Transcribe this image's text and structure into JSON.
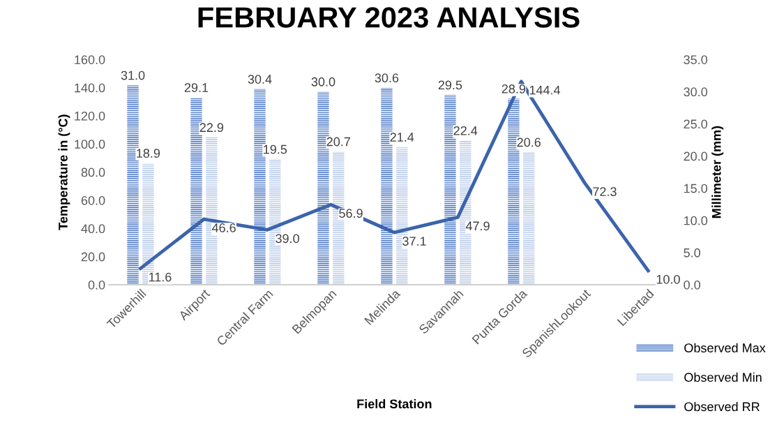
{
  "chart_data": {
    "type": "bar",
    "title": "FEBRUARY 2023 ANALYSIS",
    "xlabel": "Field Station",
    "ylabel": "Temperature in (°C)",
    "y2label": "Millimeter (mm)",
    "categories": [
      "Towerhill",
      "Airport",
      "Central Farm",
      "Belmopan",
      "Melinda",
      "Savannah",
      "Punta Gorda",
      "SpanishLookout",
      "Libertad"
    ],
    "series": [
      {
        "name": "Observed Max",
        "type": "bar",
        "axis": "y2",
        "color": "#4472c4",
        "values": [
          31.0,
          29.1,
          30.4,
          30.0,
          30.6,
          29.5,
          28.9,
          null,
          null
        ],
        "value_labels": [
          "31.0",
          "29.1",
          "30.4",
          "30.0",
          "30.6",
          "29.5",
          "28.9",
          null,
          null
        ]
      },
      {
        "name": "Observed Min",
        "type": "bar",
        "axis": "y2",
        "color": "#b4c7e7",
        "values": [
          18.9,
          22.9,
          19.5,
          20.7,
          21.4,
          22.4,
          20.6,
          null,
          null
        ],
        "value_labels": [
          "18.9",
          "22.9",
          "19.5",
          "20.7",
          "21.4",
          "22.4",
          "20.6",
          null,
          null
        ]
      },
      {
        "name": "Observed RR",
        "type": "line",
        "axis": "y",
        "color": "#3c64ac",
        "values": [
          11.6,
          46.6,
          39.0,
          56.9,
          37.1,
          47.9,
          144.4,
          72.3,
          10.0
        ],
        "value_labels": [
          "11.6",
          "46.6",
          "39.0",
          "56.9",
          "37.1",
          "47.9",
          "144.4",
          "72.3",
          "10.0"
        ]
      }
    ],
    "ylim": [
      0,
      160
    ],
    "yticks": [
      {
        "value": 0,
        "label": "0.0"
      },
      {
        "value": 20,
        "label": "20.0"
      },
      {
        "value": 40,
        "label": "40.0"
      },
      {
        "value": 60,
        "label": "60.0"
      },
      {
        "value": 80,
        "label": "80.0"
      },
      {
        "value": 100,
        "label": "100.0"
      },
      {
        "value": 120,
        "label": "120.0"
      },
      {
        "value": 140,
        "label": "140.0"
      },
      {
        "value": 160,
        "label": "160.0"
      }
    ],
    "y2lim": [
      0,
      35
    ],
    "y2ticks": [
      {
        "value": 0,
        "label": "0.0"
      },
      {
        "value": 5,
        "label": "5.0"
      },
      {
        "value": 10,
        "label": "10.0"
      },
      {
        "value": 15,
        "label": "15.0"
      },
      {
        "value": 20,
        "label": "20.0"
      },
      {
        "value": 25,
        "label": "25.0"
      },
      {
        "value": 30,
        "label": "30.0"
      },
      {
        "value": 35,
        "label": "35.0"
      }
    ],
    "legend": "bottom right",
    "grid": false,
    "marker": "none",
    "line_style": "solid"
  }
}
